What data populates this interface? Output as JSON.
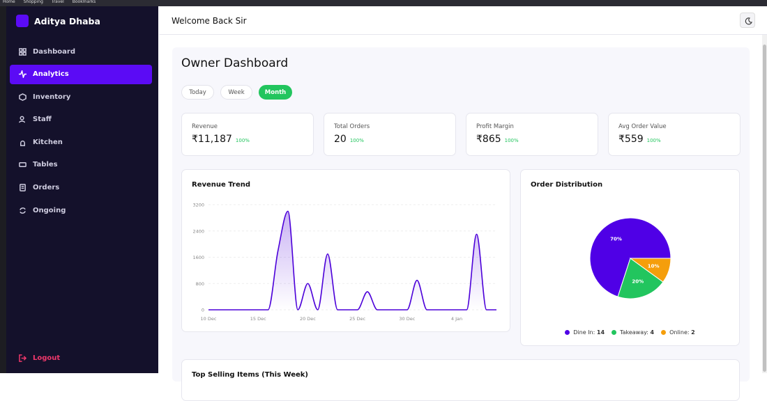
{
  "browser_bar": {
    "bookmarks": [
      "Home",
      "Shopping",
      "Travel",
      "Bookmarks"
    ]
  },
  "sidebar": {
    "brand": "Aditya Dhaba",
    "menu": [
      "Dashboard",
      "Analytics",
      "Inventory",
      "Staff",
      "Kitchen",
      "Tables",
      "Orders",
      "Ongoing"
    ],
    "logout": "Logout"
  },
  "header": {
    "title": "Welcome Back Sir"
  },
  "dashboard": {
    "title": "Owner Dashboard",
    "periods": [
      "Today",
      "Week",
      "Month"
    ],
    "stats": [
      {
        "label": "Revenue",
        "value": "₹11,187",
        "change": "100%"
      },
      {
        "label": "Total Orders",
        "value": "20",
        "change": "100%"
      },
      {
        "label": "Profit Margin",
        "value": "₹865",
        "change": "100%"
      },
      {
        "label": "Avg Order Value",
        "value": "₹559",
        "change": "100%"
      }
    ]
  },
  "chart_data": [
    {
      "type": "line",
      "title": "Revenue Trend",
      "color": "#4c00d9",
      "categories": [
        "10 Dec",
        null,
        null,
        null,
        null,
        "15 Dec",
        null,
        null,
        null,
        null,
        "20 Dec",
        null,
        null,
        null,
        null,
        "25 Dec",
        null,
        null,
        null,
        null,
        "30 Dec",
        null,
        null,
        null,
        null,
        "4 Jan",
        null,
        null,
        null,
        null
      ],
      "values": [
        0,
        0,
        0,
        0,
        0,
        0,
        0,
        1800,
        3000,
        0,
        800,
        0,
        1700,
        0,
        0,
        0,
        550,
        0,
        0,
        0,
        0,
        900,
        0,
        0,
        0,
        0,
        0,
        2300,
        0,
        0
      ],
      "ylim": [
        0,
        3200
      ],
      "yticks": [
        0,
        800,
        1600,
        2400,
        3200
      ],
      "grid": true
    },
    {
      "type": "pie",
      "title": "Order Distribution",
      "categories": [
        "Dine In:",
        "Takeaway:",
        "Online:"
      ],
      "counts": [
        14,
        4,
        2
      ],
      "values": [
        70,
        20,
        10
      ],
      "value_labels": [
        "70%",
        "20%",
        "10%"
      ],
      "colors": [
        "#4f00e6",
        "#22c55e",
        "#f59e0b"
      ],
      "legend": "bottom"
    }
  ],
  "bottom_card": {
    "title": "Top Selling Items (This Week)"
  }
}
